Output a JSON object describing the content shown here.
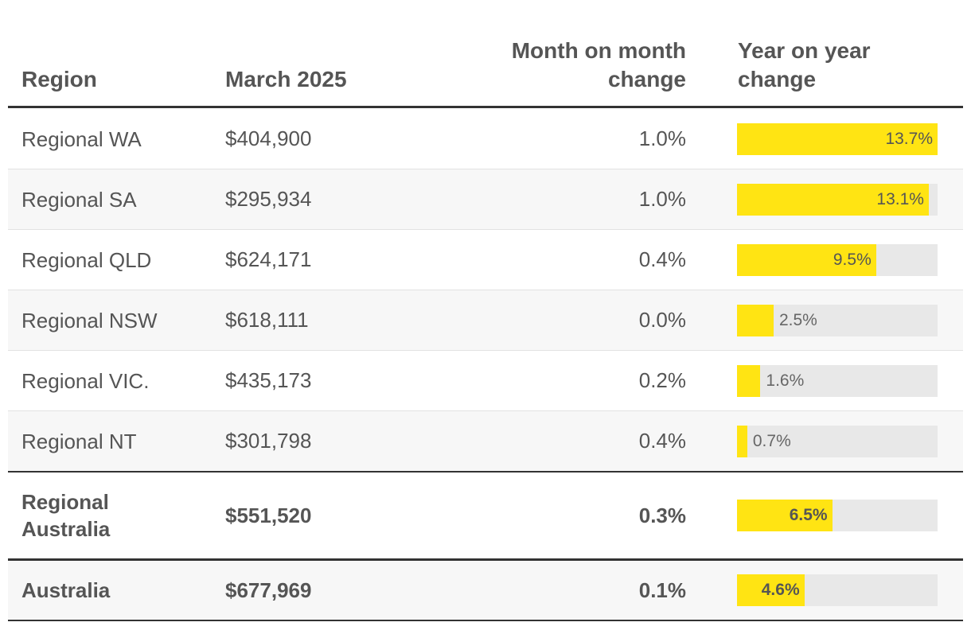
{
  "table": {
    "headers": [
      "Region",
      "March 2025",
      "Month on month change",
      "Year on year change"
    ],
    "rows": [
      {
        "region": "Regional WA",
        "price": "$404,900",
        "mom": "1.0%",
        "yoy": {
          "value": 13.7,
          "label": "13.7%"
        }
      },
      {
        "region": "Regional SA",
        "price": "$295,934",
        "mom": "1.0%",
        "yoy": {
          "value": 13.1,
          "label": "13.1%"
        }
      },
      {
        "region": "Regional QLD",
        "price": "$624,171",
        "mom": "0.4%",
        "yoy": {
          "value": 9.5,
          "label": "9.5%"
        }
      },
      {
        "region": "Regional NSW",
        "price": "$618,111",
        "mom": "0.0%",
        "yoy": {
          "value": 2.5,
          "label": "2.5%"
        }
      },
      {
        "region": "Regional VIC.",
        "price": "$435,173",
        "mom": "0.2%",
        "yoy": {
          "value": 1.6,
          "label": "1.6%"
        }
      },
      {
        "region": "Regional NT",
        "price": "$301,798",
        "mom": "0.4%",
        "yoy": {
          "value": 0.7,
          "label": "0.7%"
        }
      }
    ],
    "summary_rows": [
      {
        "region": "Regional Australia",
        "price": "$551,520",
        "mom": "0.3%",
        "yoy": {
          "value": 6.5,
          "label": "6.5%"
        }
      },
      {
        "region": "Australia",
        "price": "$677,969",
        "mom": "0.1%",
        "yoy": {
          "value": 4.6,
          "label": "4.6%"
        }
      }
    ],
    "bar_color": "#ffe413",
    "track_color": "#e8e8e8"
  }
}
